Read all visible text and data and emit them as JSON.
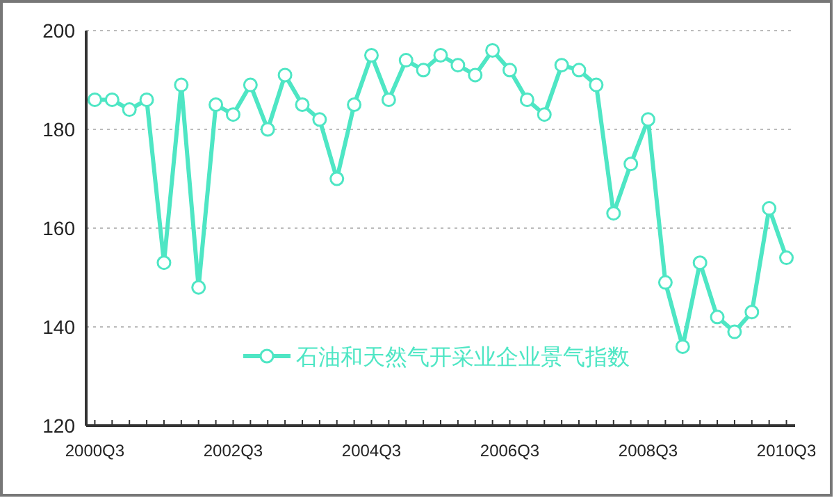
{
  "chart_data": {
    "type": "line",
    "categories": [
      "2000Q3",
      null,
      null,
      null,
      null,
      null,
      null,
      null,
      "2002Q3",
      null,
      null,
      null,
      null,
      null,
      null,
      null,
      "2004Q3",
      null,
      null,
      null,
      null,
      null,
      null,
      null,
      "2006Q3",
      null,
      null,
      null,
      null,
      null,
      null,
      null,
      "2008Q3",
      null,
      null,
      null,
      null,
      null,
      null,
      null,
      "2010Q3"
    ],
    "series": [
      {
        "name": "石油和天然气开采业企业景气指数",
        "color": "#4ee6c4",
        "values": [
          186,
          186,
          184,
          186,
          153,
          189,
          148,
          185,
          183,
          189,
          180,
          191,
          185,
          182,
          170,
          185,
          195,
          186,
          194,
          192,
          195,
          193,
          191,
          196,
          192,
          186,
          183,
          193,
          192,
          189,
          163,
          173,
          182,
          149,
          136,
          153,
          142,
          139,
          143,
          164,
          154
        ]
      }
    ],
    "ylim": [
      120,
      200
    ],
    "yticks": [
      120,
      140,
      160,
      180,
      200
    ],
    "grid": "y",
    "legend": "bottom",
    "marker": "circle",
    "line_style": "solid"
  }
}
